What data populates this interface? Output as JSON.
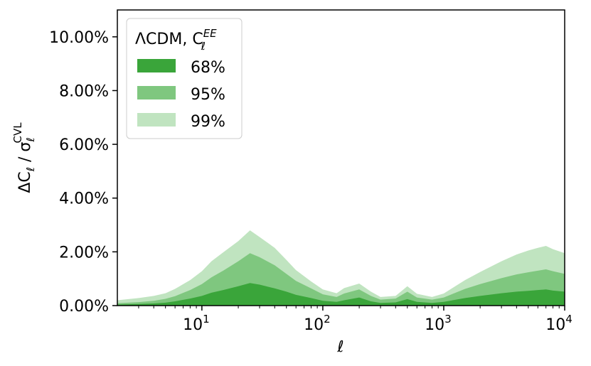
{
  "chart_data": {
    "type": "area",
    "xlabel": "ℓ",
    "ylabel": {
      "delta": "ΔC",
      "sub": "ℓ",
      "sep": " / σ",
      "sub2": "ℓ",
      "sup": "CVL"
    },
    "x_scale": "log",
    "xlim": [
      2,
      10000
    ],
    "ylim": [
      0,
      0.11
    ],
    "x_ticks": [
      {
        "value": 10,
        "base": "10",
        "exp": "1"
      },
      {
        "value": 100,
        "base": "10",
        "exp": "2"
      },
      {
        "value": 1000,
        "base": "10",
        "exp": "3"
      },
      {
        "value": 10000,
        "base": "10",
        "exp": "4"
      }
    ],
    "y_ticks": [
      {
        "value": 0.0,
        "label": "0.00%"
      },
      {
        "value": 0.02,
        "label": "2.00%"
      },
      {
        "value": 0.04,
        "label": "4.00%"
      },
      {
        "value": 0.06,
        "label": "6.00%"
      },
      {
        "value": 0.08,
        "label": "8.00%"
      },
      {
        "value": 0.1,
        "label": "10.00%"
      }
    ],
    "legend": {
      "title_main": "ΛCDM, C",
      "title_sub": "ℓ",
      "title_sup": "EE",
      "placement": "top-left"
    },
    "x": [
      2,
      3,
      4,
      5,
      6,
      8,
      10,
      12,
      15,
      20,
      25,
      30,
      40,
      50,
      60,
      80,
      100,
      130,
      150,
      200,
      250,
      300,
      400,
      500,
      600,
      800,
      1000,
      1500,
      2000,
      3000,
      4000,
      5000,
      6000,
      7000,
      8000,
      10000
    ],
    "series": [
      {
        "name": "68%",
        "color": "#3aa53a",
        "values": [
          0.0004,
          0.0006,
          0.0008,
          0.0011,
          0.0016,
          0.0026,
          0.0036,
          0.0048,
          0.0058,
          0.0072,
          0.0084,
          0.0078,
          0.0064,
          0.0052,
          0.004,
          0.0028,
          0.0018,
          0.0014,
          0.002,
          0.003,
          0.0016,
          0.001,
          0.0012,
          0.0024,
          0.0014,
          0.001,
          0.0014,
          0.0028,
          0.0036,
          0.0046,
          0.0052,
          0.0055,
          0.0058,
          0.006,
          0.0056,
          0.0052
        ]
      },
      {
        "name": "95%",
        "color": "#7fc77f",
        "values": [
          0.0009,
          0.0013,
          0.0018,
          0.0025,
          0.0035,
          0.0058,
          0.008,
          0.0105,
          0.013,
          0.0165,
          0.0195,
          0.018,
          0.015,
          0.0118,
          0.0092,
          0.0064,
          0.0042,
          0.0032,
          0.0045,
          0.006,
          0.0036,
          0.0022,
          0.0026,
          0.0052,
          0.003,
          0.0022,
          0.003,
          0.0062,
          0.008,
          0.0102,
          0.0116,
          0.0124,
          0.013,
          0.0135,
          0.0128,
          0.0118
        ]
      },
      {
        "name": "99%",
        "color": "#c0e4c0",
        "values": [
          0.002,
          0.0028,
          0.0036,
          0.0046,
          0.0062,
          0.0095,
          0.0128,
          0.0165,
          0.0198,
          0.024,
          0.028,
          0.0255,
          0.0215,
          0.017,
          0.0132,
          0.009,
          0.006,
          0.0046,
          0.0065,
          0.0082,
          0.0052,
          0.0032,
          0.0036,
          0.0072,
          0.0044,
          0.0032,
          0.0045,
          0.0095,
          0.0125,
          0.0165,
          0.019,
          0.0205,
          0.0215,
          0.0222,
          0.021,
          0.0195
        ]
      }
    ],
    "grid": false
  }
}
